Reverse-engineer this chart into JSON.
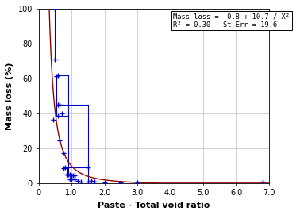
{
  "title": "",
  "xlabel": "Paste - Total void ratio",
  "ylabel": "Mass loss (%)",
  "xlim": [
    0.0,
    7.0
  ],
  "ylim": [
    0,
    100
  ],
  "xticks": [
    0.0,
    1.0,
    2.0,
    3.0,
    4.0,
    5.0,
    6.0,
    7.0
  ],
  "xtick_labels": [
    "0",
    "1.0",
    "2.0",
    "3.0",
    "4.0",
    "5.0",
    "6.0",
    "7.0"
  ],
  "yticks": [
    0,
    20,
    40,
    60,
    80,
    100
  ],
  "ytick_labels": [
    "0",
    "20",
    "40",
    "60",
    "80",
    "100"
  ],
  "annotation_line1": "Mass loss = –0.8 + 10.7 / X²",
  "annotation_line2": "R² = 0.30   St Err = 19.6",
  "boundary_points": [
    [
      0.45,
      36.5
    ],
    [
      0.5,
      100.0
    ],
    [
      0.5,
      71.0
    ],
    [
      0.55,
      61.5
    ],
    [
      0.6,
      62.0
    ],
    [
      0.6,
      45.0
    ],
    [
      0.6,
      38.5
    ],
    [
      0.65,
      45.0
    ],
    [
      0.65,
      24.5
    ],
    [
      0.7,
      40.0
    ],
    [
      0.75,
      17.0
    ],
    [
      0.75,
      8.5
    ],
    [
      0.8,
      9.0
    ],
    [
      0.85,
      5.0
    ],
    [
      0.88,
      5.0
    ],
    [
      0.9,
      5.0
    ],
    [
      0.95,
      5.0
    ],
    [
      0.95,
      2.0
    ],
    [
      1.0,
      2.0
    ],
    [
      1.0,
      4.5
    ],
    [
      1.05,
      4.5
    ],
    [
      1.1,
      4.5
    ],
    [
      1.1,
      2.0
    ],
    [
      1.2,
      1.5
    ],
    [
      1.3,
      1.0
    ],
    [
      1.5,
      1.0
    ],
    [
      1.5,
      9.0
    ],
    [
      1.6,
      1.5
    ],
    [
      1.7,
      1.0
    ],
    [
      2.0,
      0.5
    ],
    [
      2.5,
      0.5
    ],
    [
      3.0,
      0.5
    ],
    [
      6.8,
      1.0
    ]
  ],
  "horiz_lines": [
    [
      0.5,
      0.65,
      71.0
    ],
    [
      0.55,
      0.9,
      62.0
    ],
    [
      0.6,
      1.5,
      45.0
    ],
    [
      0.6,
      0.9,
      38.5
    ],
    [
      0.75,
      0.88,
      8.5
    ],
    [
      0.8,
      1.5,
      9.0
    ],
    [
      0.9,
      1.1,
      5.0
    ]
  ],
  "vert_lines": [
    [
      0.5,
      71.0,
      100.0
    ],
    [
      0.55,
      38.5,
      62.0
    ],
    [
      0.9,
      5.0,
      62.0
    ],
    [
      1.5,
      1.0,
      45.0
    ],
    [
      0.88,
      5.0,
      8.5
    ],
    [
      1.1,
      2.0,
      5.0
    ]
  ],
  "curve_color": "#990000",
  "data_color": "#0000cc",
  "background_color": "#ffffff",
  "grid_color": "#c0c0c0",
  "figsize": [
    3.73,
    2.71
  ],
  "dpi": 100
}
